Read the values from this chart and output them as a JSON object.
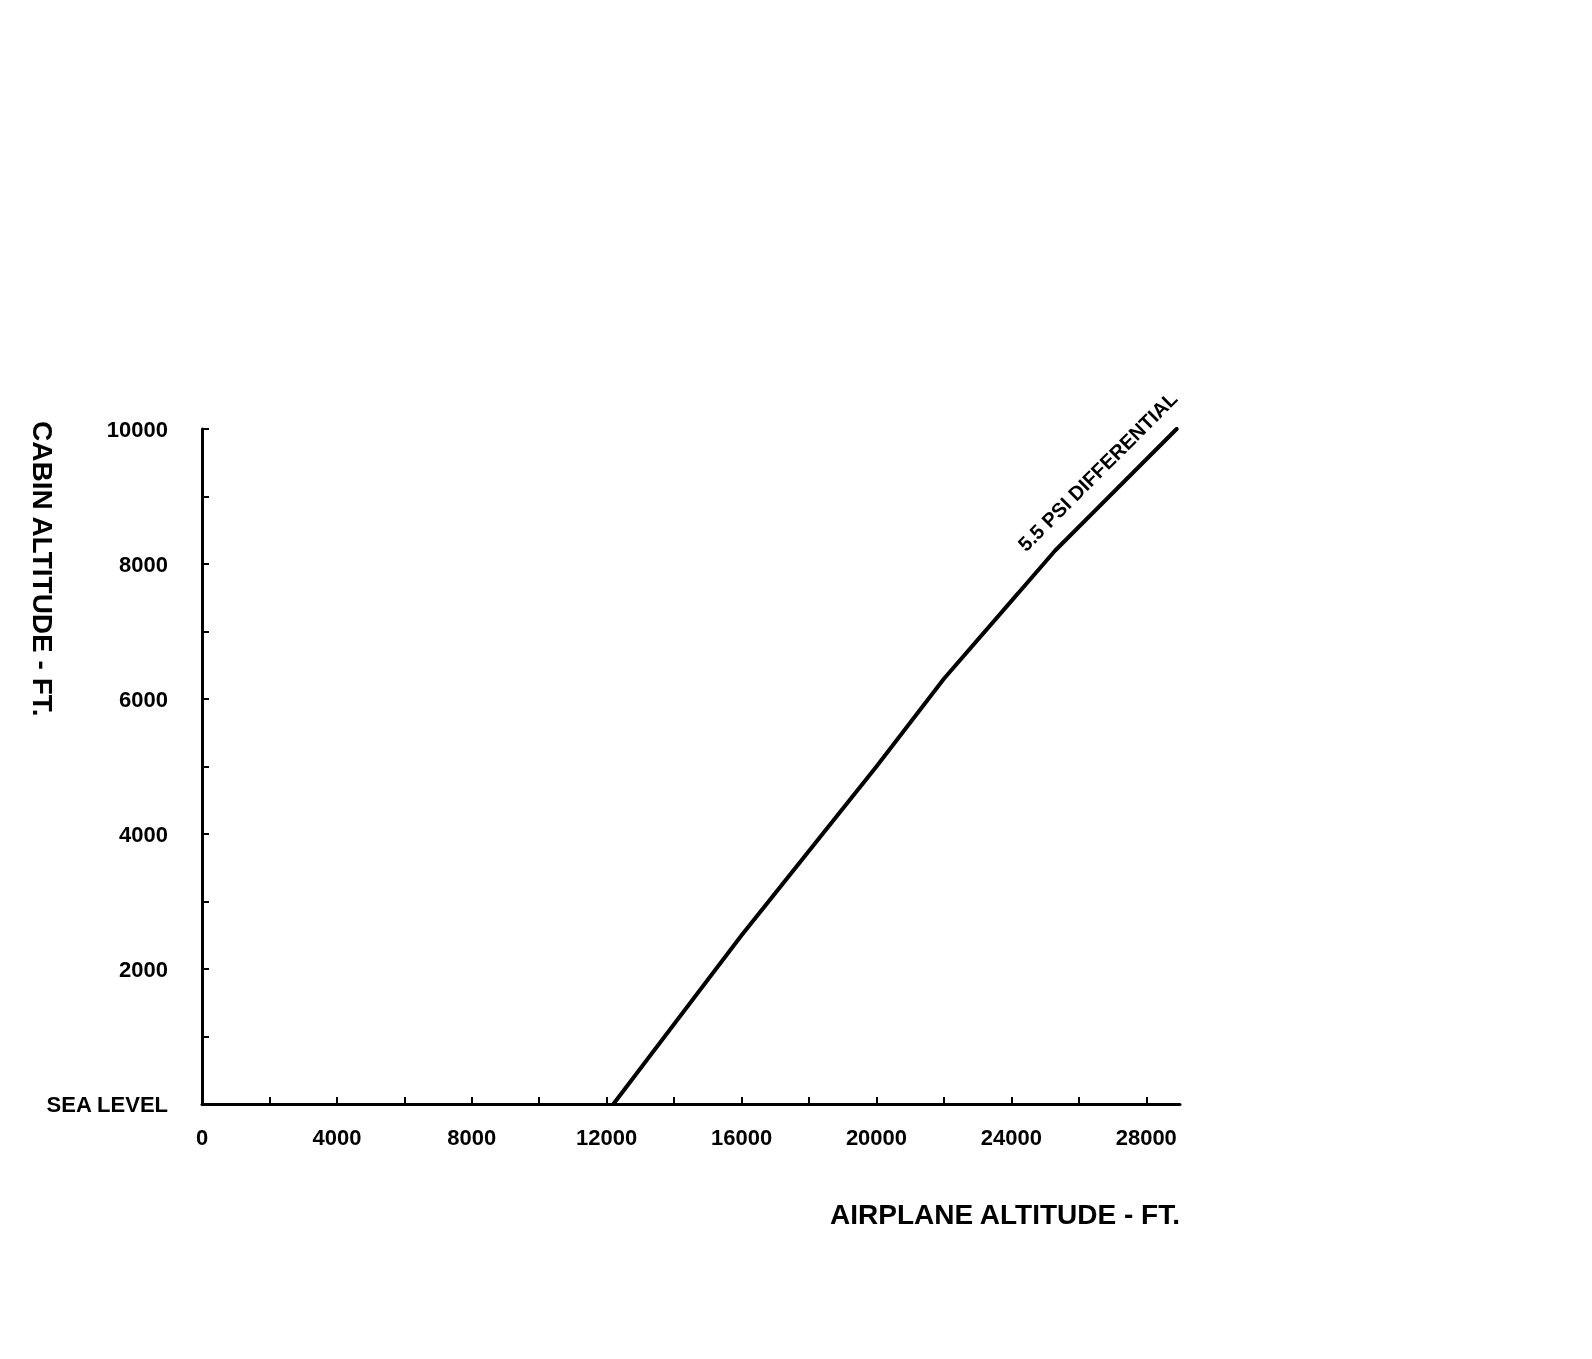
{
  "chart_data": {
    "type": "line",
    "xlabel": "AIRPLANE ALTITUDE - FT.",
    "ylabel": "CABIN ALTITUDE - FT.",
    "xlim": [
      0,
      29000
    ],
    "ylim": [
      0,
      10000
    ],
    "xticks": [
      0,
      {
        "value": 2000,
        "label": null
      },
      4000,
      {
        "value": 6000,
        "label": null
      },
      8000,
      {
        "value": 10000,
        "label": null
      },
      12000,
      {
        "value": 14000,
        "label": null
      },
      16000,
      {
        "value": 18000,
        "label": null
      },
      20000,
      {
        "value": 22000,
        "label": null
      },
      24000,
      {
        "value": 26000,
        "label": null
      },
      28000
    ],
    "yticks": [
      {
        "value": 0,
        "label": "SEA LEVEL"
      },
      {
        "value": 1000,
        "label": null
      },
      2000,
      {
        "value": 3000,
        "label": null
      },
      4000,
      {
        "value": 5000,
        "label": null
      },
      6000,
      {
        "value": 7000,
        "label": null
      },
      8000,
      {
        "value": 9000,
        "label": null
      },
      10000
    ],
    "grid": false,
    "legend": false,
    "marker": "none",
    "line_style": "solid",
    "series": [
      {
        "name": "5.5 PSI DIFFERENTIAL",
        "color": "#000000",
        "x": [
          12200,
          16000,
          20000,
          22000,
          25300,
          28900
        ],
        "values": [
          0,
          2500,
          5000,
          6300,
          8200,
          10000
        ]
      }
    ]
  }
}
